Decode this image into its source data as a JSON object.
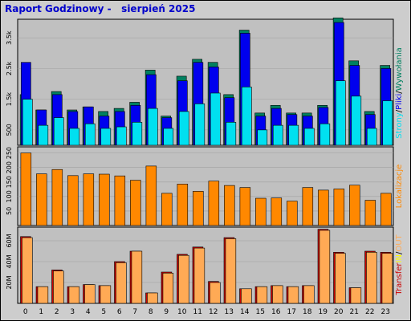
{
  "title": "Raport Godzinowy -   sierpień 2025",
  "colors": {
    "background": "#cdcdcd",
    "plot_bg": "#c0c0c0",
    "strony": "#0000ee",
    "pliki": "#00e0f0",
    "wywolania": "#008060",
    "lokalizacje": "#ff8800",
    "transfer": "#cc0000",
    "in": "#ffff00",
    "out": "#ffaa55"
  },
  "chart_data": [
    {
      "type": "bar",
      "panel": "top",
      "categories": [
        "0",
        "1",
        "2",
        "3",
        "4",
        "5",
        "6",
        "7",
        "8",
        "9",
        "10",
        "11",
        "12",
        "13",
        "14",
        "15",
        "16",
        "17",
        "18",
        "19",
        "20",
        "21",
        "22",
        "23"
      ],
      "y_ticks": [
        "500",
        "1.5k",
        "2.5k",
        "3.5k"
      ],
      "ylim": [
        0,
        4000
      ],
      "series": [
        {
          "name": "Strony",
          "values": [
            2700,
            1150,
            1650,
            1100,
            1250,
            950,
            1100,
            1300,
            2300,
            900,
            2100,
            2700,
            2550,
            1550,
            3650,
            950,
            1200,
            1000,
            950,
            1230,
            4000,
            2600,
            1000,
            2500
          ]
        },
        {
          "name": "Pliki",
          "values": [
            1500,
            650,
            900,
            550,
            700,
            550,
            600,
            750,
            1200,
            550,
            1100,
            1350,
            1700,
            750,
            1900,
            500,
            650,
            650,
            550,
            700,
            2100,
            1600,
            550,
            1450
          ]
        },
        {
          "name": "Wywołania",
          "values": [
            1650,
            1150,
            1750,
            1150,
            1250,
            1100,
            1200,
            1400,
            2450,
            950,
            2250,
            2800,
            2700,
            1650,
            3750,
            1050,
            1300,
            1050,
            1050,
            1300,
            4150,
            2750,
            1100,
            2600
          ]
        }
      ],
      "ylabel_parts": [
        "Strony",
        "/",
        "Pliki",
        "/",
        "Wywołania"
      ]
    },
    {
      "type": "bar",
      "panel": "middle",
      "categories": [
        "0",
        "1",
        "2",
        "3",
        "4",
        "5",
        "6",
        "7",
        "8",
        "9",
        "10",
        "11",
        "12",
        "13",
        "14",
        "15",
        "16",
        "17",
        "18",
        "19",
        "20",
        "21",
        "22",
        "23"
      ],
      "y_ticks": [
        "50",
        "100",
        "150",
        "200",
        "250"
      ],
      "ylim": [
        0,
        260
      ],
      "series": [
        {
          "name": "Lokalizacje",
          "values": [
            250,
            178,
            193,
            172,
            178,
            177,
            171,
            156,
            205,
            111,
            143,
            118,
            153,
            138,
            131,
            94,
            95,
            84,
            131,
            122,
            126,
            139,
            87,
            111
          ]
        }
      ],
      "ylabel": "Lokalizacje"
    },
    {
      "type": "bar",
      "panel": "bottom",
      "categories": [
        "0",
        "1",
        "2",
        "3",
        "4",
        "5",
        "6",
        "7",
        "8",
        "9",
        "10",
        "11",
        "12",
        "13",
        "14",
        "15",
        "16",
        "17",
        "18",
        "19",
        "20",
        "21",
        "22",
        "23"
      ],
      "y_ticks": [
        "20M",
        "40M",
        "60M"
      ],
      "ylim": [
        0,
        70
      ],
      "series": [
        {
          "name": "IN",
          "values": [
            64,
            16,
            32,
            16,
            18,
            17,
            40,
            50,
            10,
            30,
            47,
            54,
            21,
            63,
            14,
            16,
            17,
            16,
            17,
            71,
            49,
            15,
            50,
            49
          ]
        },
        {
          "name": "OUT",
          "values": [
            63,
            16,
            31,
            16,
            18,
            17,
            39,
            50,
            10,
            29,
            46,
            53,
            20,
            62,
            14,
            16,
            17,
            16,
            17,
            70,
            48,
            15,
            49,
            48
          ]
        }
      ],
      "ylabel_parts": [
        "Transfer",
        "IN",
        "/",
        "OUT"
      ]
    }
  ]
}
